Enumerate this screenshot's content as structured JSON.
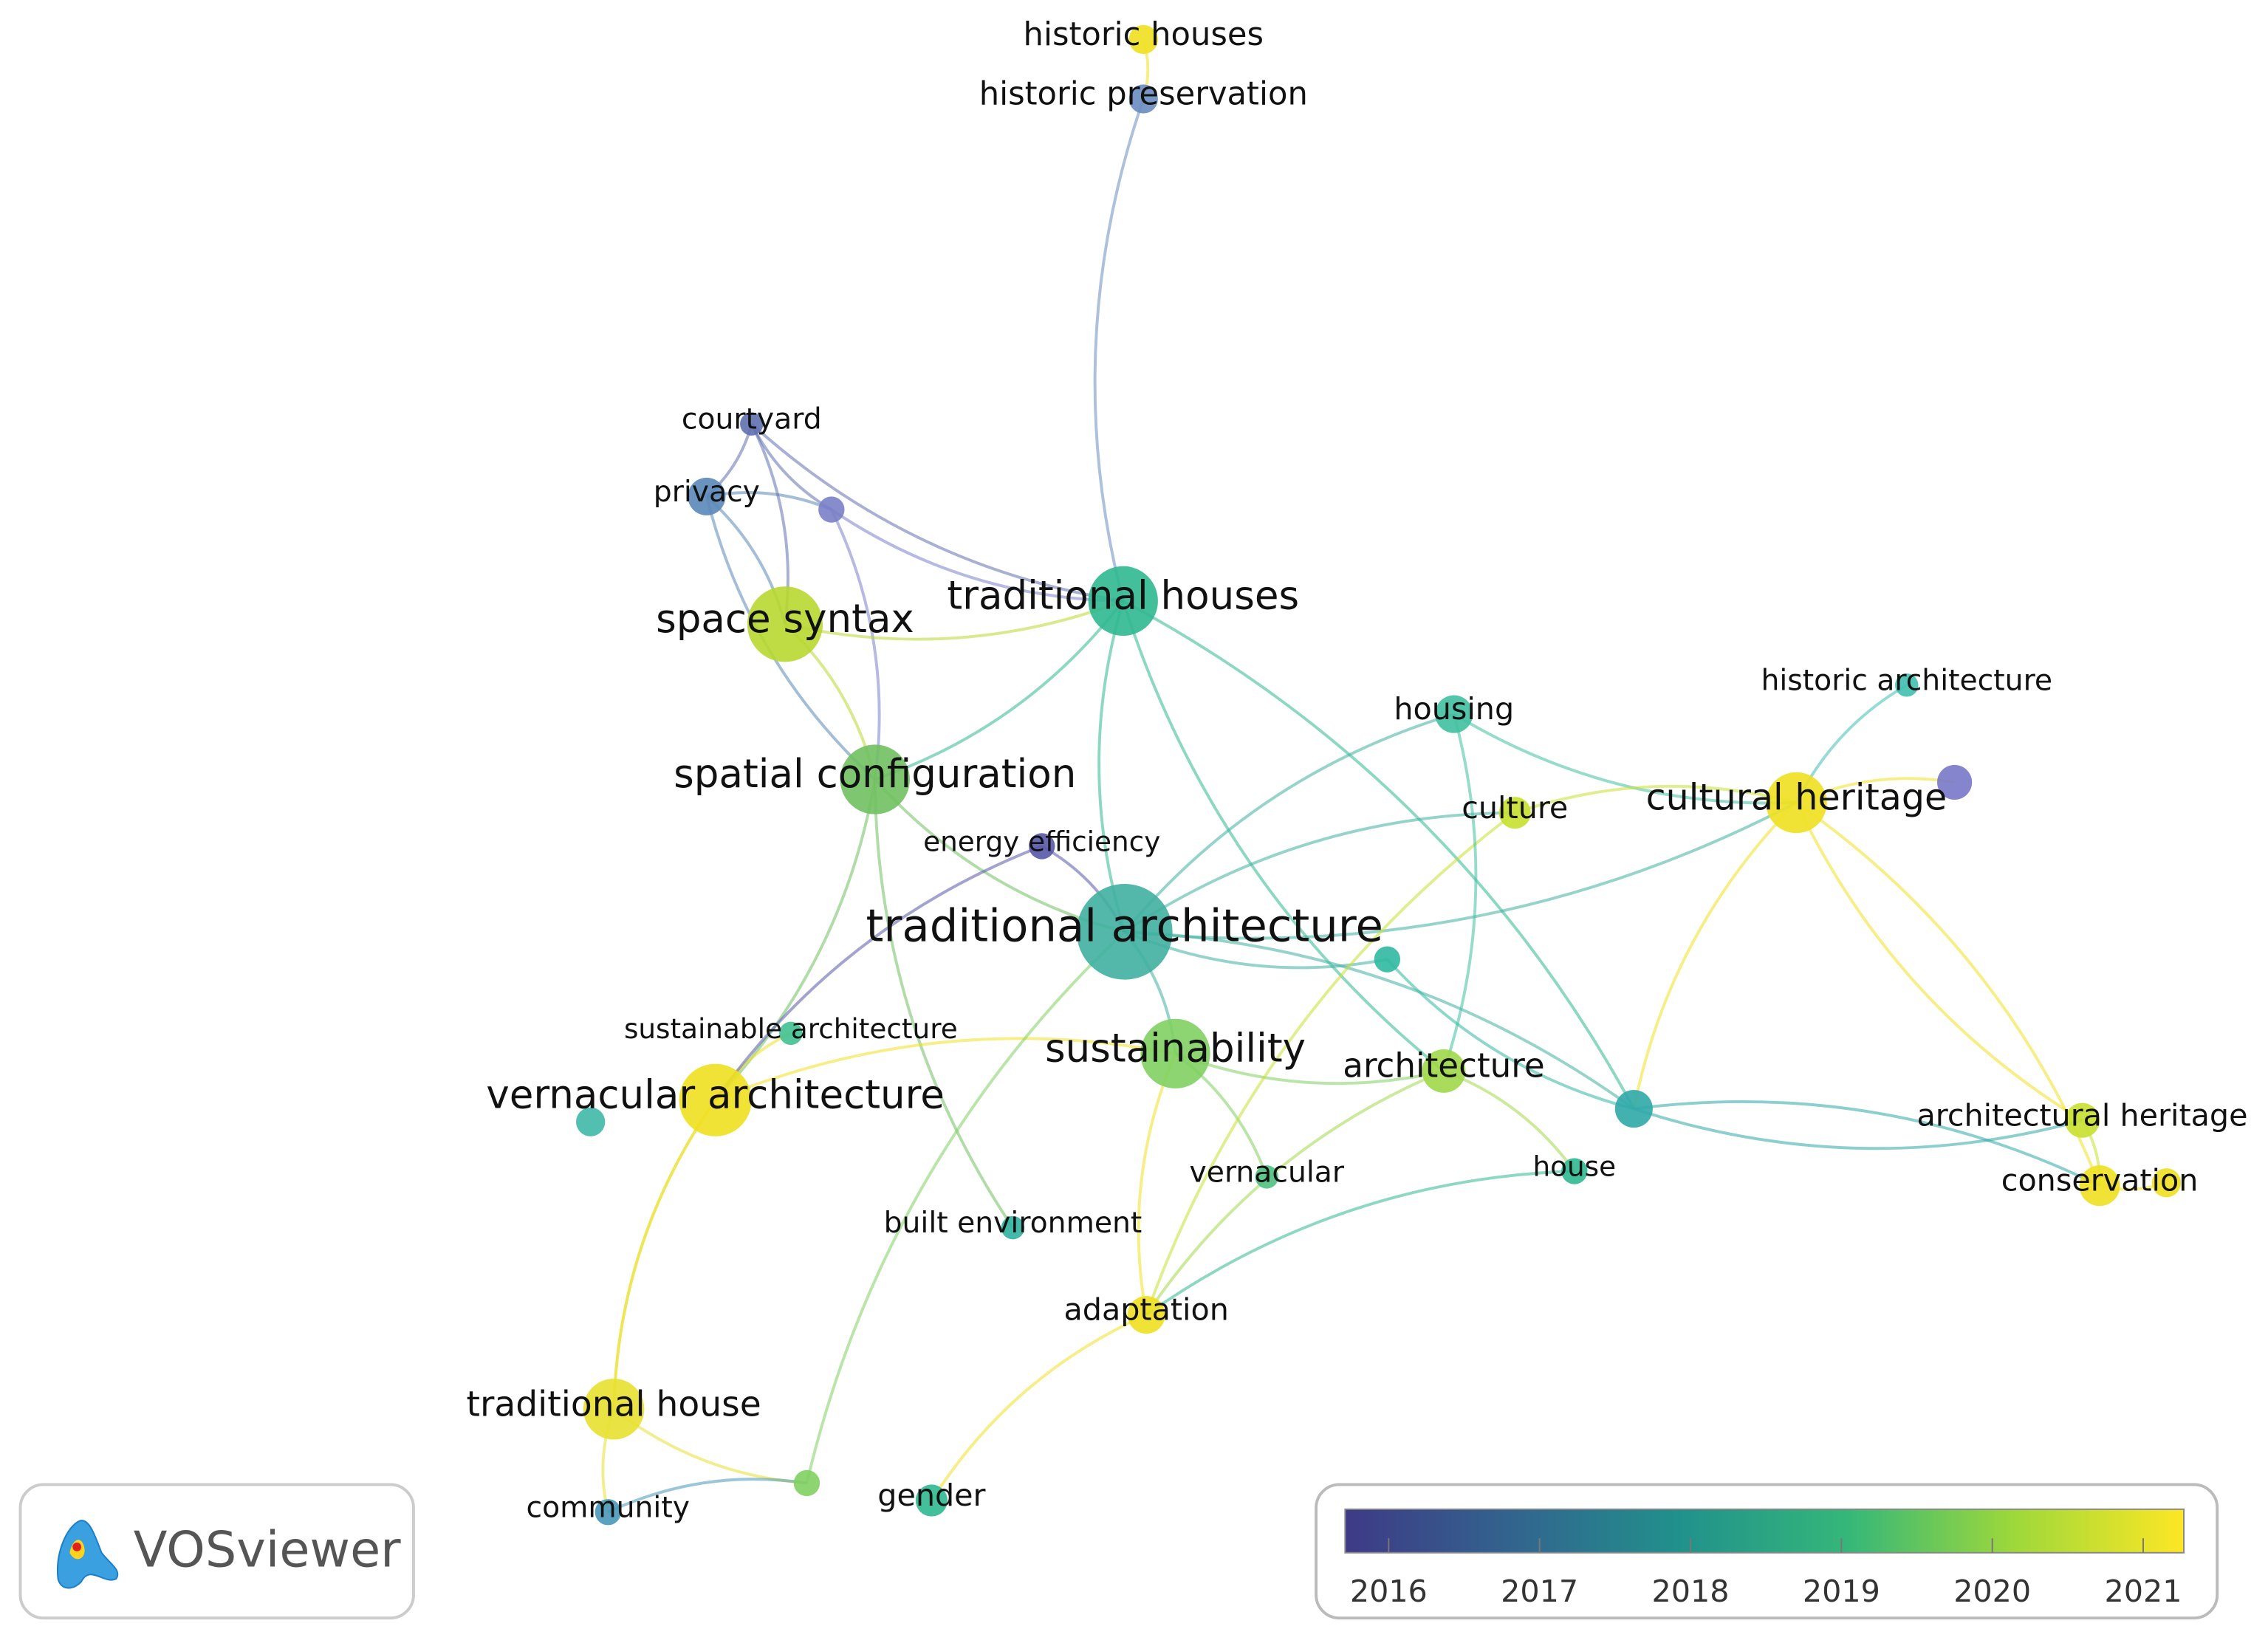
{
  "nodes": [
    {
      "label": "historic houses"
    },
    {
      "label": "historic preservation"
    },
    {
      "label": "courtyard"
    },
    {
      "label": "privacy"
    },
    {
      "label": "space syntax"
    },
    {
      "label": "traditional houses"
    },
    {
      "label": "spatial configuration"
    },
    {
      "label": "energy efficiency"
    },
    {
      "label": "traditional architecture"
    },
    {
      "label": "housing"
    },
    {
      "label": "historic architecture"
    },
    {
      "label": "culture"
    },
    {
      "label": "cultural heritage"
    },
    {
      "label": "sustainable architecture"
    },
    {
      "label": "vernacular architecture"
    },
    {
      "label": "sustainability"
    },
    {
      "label": "architecture"
    },
    {
      "label": "vernacular"
    },
    {
      "label": "house"
    },
    {
      "label": "built environment"
    },
    {
      "label": "adaptation"
    },
    {
      "label": "architectural heritage"
    },
    {
      "label": "conservation"
    },
    {
      "label": "traditional house"
    },
    {
      "label": "community"
    },
    {
      "label": "gender"
    }
  ],
  "legend": {
    "ticks": [
      2016,
      2017,
      2018,
      2019,
      2020,
      2021
    ]
  },
  "logo": {
    "text": "VOSviewer"
  }
}
